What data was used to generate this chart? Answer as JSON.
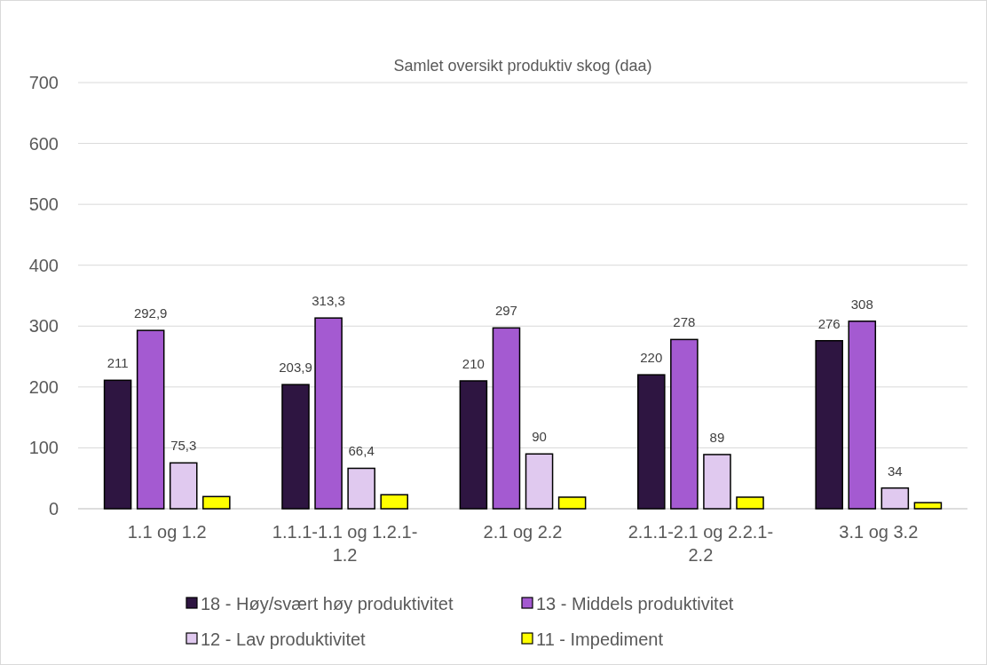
{
  "chart_data": {
    "type": "bar",
    "title": "Samlet oversikt produktiv skog (daa)",
    "categories": [
      "1.1 og 1.2",
      "1.1.1-1.1 og 1.2.1-1.2",
      "2.1 og 2.2",
      "2.1.1-2.1 og 2.2.1-2.2",
      "3.1 og 3.2"
    ],
    "series": [
      {
        "name": "18 - Høy/svært høy produktivitet",
        "color": "#2e1541",
        "values": [
          211,
          203.9,
          210,
          220,
          276
        ],
        "value_labels": [
          "211",
          "203,9",
          "210",
          "220",
          "276"
        ]
      },
      {
        "name": "13 - Middels produktivitet",
        "color": "#a45ad1",
        "values": [
          292.9,
          313.3,
          297,
          278,
          308
        ],
        "value_labels": [
          "292,9",
          "313,3",
          "297",
          "278",
          "308"
        ]
      },
      {
        "name": "12 - Lav produktivitet",
        "color": "#e0c9ef",
        "values": [
          75.3,
          66.4,
          90,
          89,
          34
        ],
        "value_labels": [
          "75,3",
          "66,4",
          "90",
          "89",
          "34"
        ]
      },
      {
        "name": "11 - Impediment",
        "color": "#ffff00",
        "values": [
          20,
          23,
          19,
          19,
          10
        ]
      }
    ],
    "ylim": [
      0,
      700
    ],
    "yticks": [
      0,
      100,
      200,
      300,
      400,
      500,
      600,
      700
    ],
    "grid": "y",
    "legend": "bottom"
  }
}
